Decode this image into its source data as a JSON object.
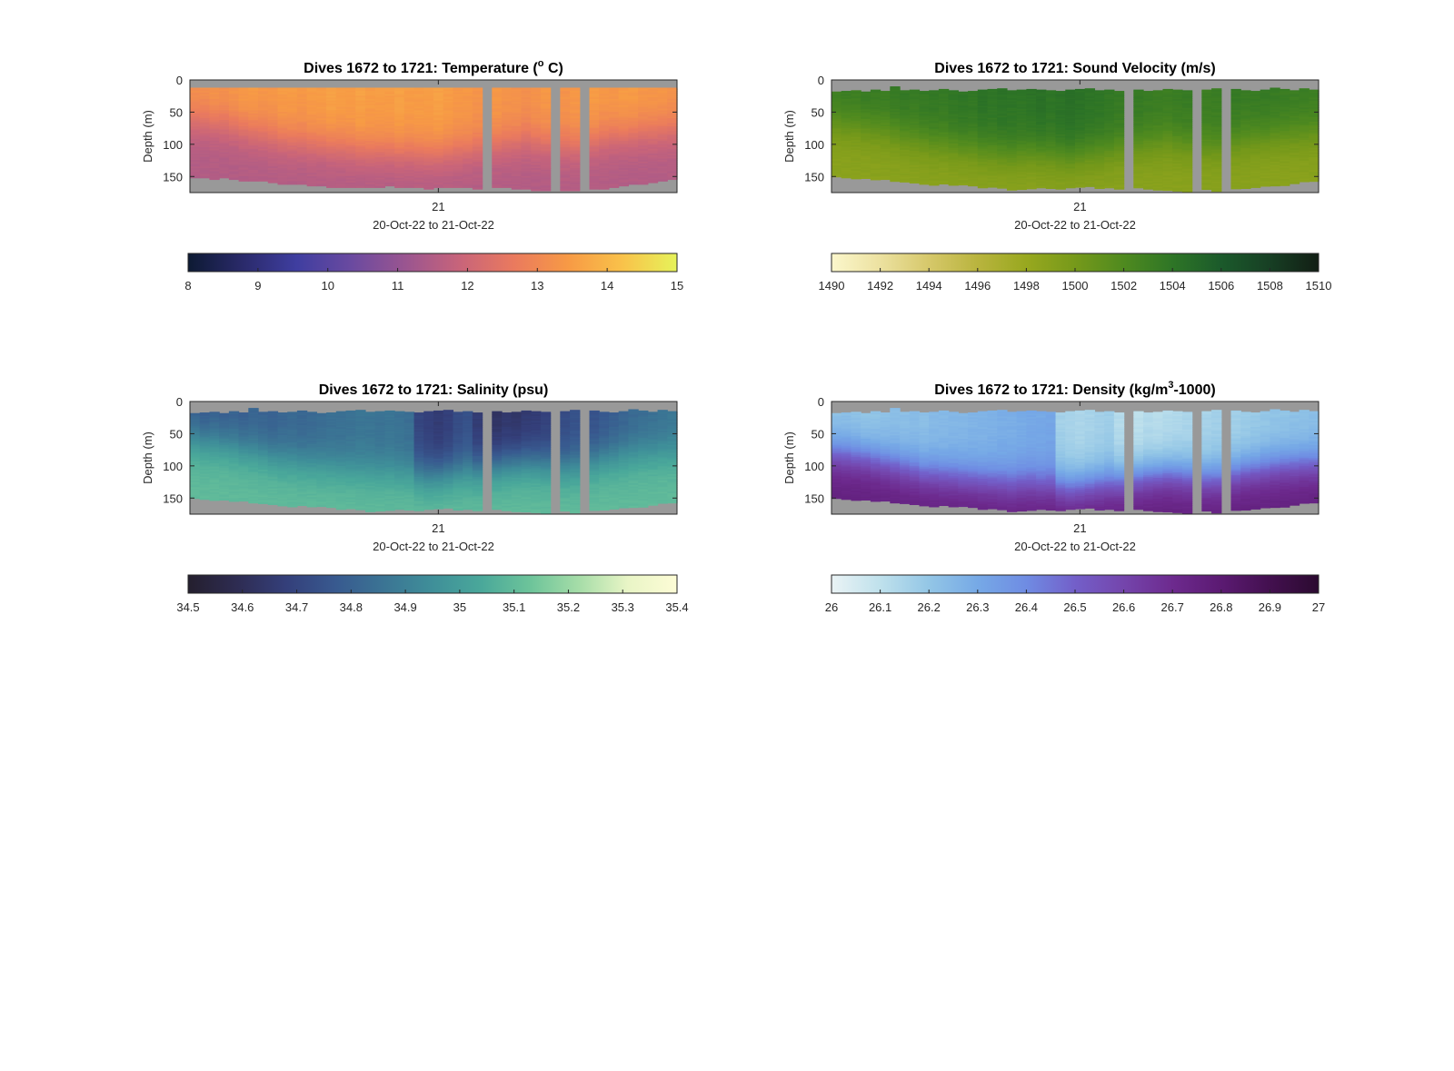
{
  "chart_data": [
    {
      "type": "heatmap",
      "title_main": "Dives 1672 to 1721: Temperature (",
      "title_sup": "o",
      "title_tail": " C)",
      "ylabel": "Depth (m)",
      "xlabel": "20-Oct-22 to 21-Oct-22",
      "x_ticks": [
        "21"
      ],
      "y_ticks": [
        0,
        50,
        100,
        150
      ],
      "ylim": [
        0,
        175
      ],
      "colorbar": {
        "min": 8,
        "max": 15,
        "ticks": [
          "8",
          "9",
          "10",
          "11",
          "12",
          "13",
          "14",
          "15"
        ],
        "colors": [
          "#0d1a33",
          "#2a2a6a",
          "#3f3ea0",
          "#6a4aa0",
          "#9a5590",
          "#c8647a",
          "#ea7a5e",
          "#f79a45",
          "#f9c24a",
          "#e6f35a"
        ]
      },
      "top_depth": [
        12,
        12,
        12,
        12,
        12,
        12,
        12,
        12,
        12,
        12,
        12,
        12,
        12,
        12,
        12,
        12,
        12,
        12,
        12,
        12,
        12,
        12,
        12,
        12,
        12,
        12,
        12,
        12,
        12,
        12,
        12,
        12,
        12,
        12,
        12,
        12,
        12,
        12,
        12,
        12,
        12,
        12,
        12,
        12,
        12,
        12,
        12,
        12,
        12,
        12
      ],
      "bottom_depth": [
        152,
        152,
        153,
        152,
        154,
        155,
        156,
        157,
        158,
        160,
        161,
        162,
        163,
        164,
        165,
        166,
        166,
        167,
        166,
        165,
        164,
        165,
        166,
        167,
        168,
        167,
        166,
        166,
        165,
        168,
        167,
        166,
        167,
        168,
        169,
        170,
        170,
        169,
        170,
        171,
        170,
        169,
        168,
        166,
        164,
        162,
        160,
        158,
        156,
        154
      ],
      "gaps": [
        30,
        37,
        40
      ],
      "profile": {
        "surface": [
          13.3,
          13.3,
          13.4,
          13.3,
          13.4,
          13.5,
          13.5,
          13.4,
          13.4,
          13.5,
          13.5,
          13.4,
          13.5,
          13.5,
          13.6,
          13.5,
          13.5,
          13.6,
          13.5,
          13.5,
          13.5,
          13.6,
          13.5,
          13.5,
          13.5,
          13.6,
          13.5,
          13.4,
          13.4,
          13.3,
          13.3,
          13.4,
          13.3,
          13.3,
          13.2,
          13.3,
          13.4,
          13.3,
          13.3,
          13.4,
          13.5,
          13.5,
          13.4,
          13.4,
          13.5,
          13.5,
          13.4,
          13.4,
          13.4,
          13.3
        ],
        "mid": [
          60,
          62,
          64,
          66,
          70,
          74,
          78,
          82,
          86,
          90,
          92,
          94,
          96,
          98,
          100,
          102,
          104,
          106,
          108,
          108,
          108,
          110,
          110,
          112,
          114,
          112,
          110,
          108,
          106,
          104,
          100,
          98,
          96,
          94,
          92,
          94,
          96,
          98,
          100,
          100,
          96,
          92,
          88,
          86,
          84,
          82,
          80,
          80,
          78,
          78
        ],
        "bottom_val": 11.5
      }
    },
    {
      "type": "heatmap",
      "title_main": "Dives 1672 to 1721: Sound Velocity (m/s)",
      "title_sup": "",
      "title_tail": "",
      "ylabel": "Depth (m)",
      "xlabel": "20-Oct-22 to 21-Oct-22",
      "x_ticks": [
        "21"
      ],
      "y_ticks": [
        0,
        50,
        100,
        150
      ],
      "ylim": [
        0,
        175
      ],
      "colorbar": {
        "min": 1490,
        "max": 1510,
        "ticks": [
          "1490",
          "1492",
          "1494",
          "1496",
          "1498",
          "1500",
          "1502",
          "1504",
          "1506",
          "1508",
          "1510"
        ],
        "colors": [
          "#fbf7cc",
          "#ece1a0",
          "#d6c86a",
          "#b9b43e",
          "#98a81f",
          "#76991a",
          "#4f8a1f",
          "#2e7526",
          "#1b5a2b",
          "#173f24",
          "#121e14"
        ]
      },
      "top_depth": [
        18,
        17,
        16,
        18,
        15,
        17,
        10,
        16,
        15,
        17,
        16,
        14,
        16,
        18,
        17,
        15,
        14,
        13,
        16,
        15,
        14,
        15,
        16,
        17,
        15,
        14,
        13,
        16,
        15,
        17,
        16,
        15,
        17,
        16,
        14,
        15,
        16,
        14,
        15,
        13,
        14,
        14,
        16,
        17,
        15,
        12,
        14,
        16,
        13,
        15
      ],
      "bottom_depth": [
        150,
        152,
        152,
        153,
        155,
        154,
        156,
        157,
        158,
        160,
        162,
        161,
        162,
        163,
        164,
        166,
        165,
        168,
        170,
        168,
        167,
        166,
        168,
        169,
        167,
        166,
        165,
        167,
        166,
        168,
        167,
        166,
        168,
        169,
        170,
        171,
        172,
        170,
        169,
        171,
        170,
        168,
        167,
        166,
        165,
        163,
        162,
        160,
        158,
        156
      ],
      "gaps": [
        30,
        37,
        40
      ],
      "profile": {
        "surface": [
          1503.3,
          1503.5,
          1503.3,
          1503.6,
          1503.5,
          1503.4,
          1503.6,
          1503.8,
          1503.5,
          1503.7,
          1503.8,
          1503.6,
          1503.9,
          1504.0,
          1503.8,
          1504.2,
          1504.0,
          1504.2,
          1504.1,
          1504.0,
          1504.2,
          1504.4,
          1504.1,
          1504.3,
          1504.5,
          1504.3,
          1504.1,
          1504.0,
          1503.8,
          1503.6,
          1503.5,
          1503.6,
          1503.4,
          1503.3,
          1503.2,
          1503.4,
          1503.5,
          1503.3,
          1503.2,
          1503.3,
          1503.5,
          1503.6,
          1503.4,
          1503.5,
          1503.6,
          1503.5,
          1503.4,
          1503.3,
          1503.3,
          1503.2
        ],
        "mid": [
          65,
          68,
          70,
          72,
          75,
          78,
          82,
          86,
          90,
          93,
          96,
          98,
          100,
          103,
          105,
          108,
          110,
          112,
          114,
          112,
          110,
          112,
          114,
          116,
          118,
          115,
          112,
          110,
          108,
          105,
          102,
          100,
          98,
          96,
          95,
          97,
          100,
          102,
          104,
          103,
          99,
          95,
          92,
          90,
          88,
          86,
          85,
          84,
          83,
          82
        ],
        "bottom_val": 1498.8
      }
    },
    {
      "type": "heatmap",
      "title_main": "Dives 1672 to 1721: Salinity (psu)",
      "title_sup": "",
      "title_tail": "",
      "ylabel": "Depth (m)",
      "xlabel": "20-Oct-22 to 21-Oct-22",
      "x_ticks": [
        "21"
      ],
      "y_ticks": [
        0,
        50,
        100,
        150
      ],
      "ylim": [
        0,
        175
      ],
      "colorbar": {
        "min": 34.5,
        "max": 35.4,
        "ticks": [
          "34.5",
          "34.6",
          "34.7",
          "34.8",
          "34.9",
          "35",
          "35.1",
          "35.2",
          "35.3",
          "35.4"
        ],
        "colors": [
          "#241f2e",
          "#2e2c52",
          "#343f7a",
          "#38598f",
          "#3b7494",
          "#3f8f99",
          "#4aa89a",
          "#6dc49a",
          "#a6dda8",
          "#e9f5c6",
          "#fdfcd6"
        ]
      },
      "top_depth": [
        18,
        17,
        16,
        18,
        15,
        17,
        10,
        16,
        15,
        17,
        16,
        14,
        16,
        18,
        17,
        15,
        14,
        13,
        16,
        15,
        14,
        15,
        16,
        17,
        15,
        14,
        13,
        16,
        15,
        17,
        16,
        15,
        17,
        16,
        14,
        15,
        16,
        14,
        15,
        13,
        14,
        14,
        16,
        17,
        15,
        12,
        14,
        16,
        13,
        15
      ],
      "bottom_depth": [
        150,
        152,
        152,
        153,
        155,
        154,
        156,
        157,
        158,
        160,
        162,
        161,
        162,
        163,
        164,
        166,
        165,
        168,
        170,
        168,
        167,
        166,
        168,
        169,
        167,
        166,
        165,
        167,
        166,
        168,
        167,
        166,
        168,
        169,
        170,
        171,
        172,
        170,
        169,
        171,
        170,
        168,
        167,
        166,
        165,
        163,
        162,
        160,
        158,
        156
      ],
      "gaps": [
        30,
        37,
        40
      ],
      "profile": {
        "surface": [
          34.78,
          34.76,
          34.78,
          34.77,
          34.79,
          34.78,
          34.8,
          34.8,
          34.79,
          34.81,
          34.82,
          34.81,
          34.82,
          34.83,
          34.84,
          34.84,
          34.85,
          34.86,
          34.86,
          34.85,
          34.86,
          34.85,
          34.84,
          34.7,
          34.68,
          34.66,
          34.68,
          34.72,
          34.74,
          34.66,
          34.64,
          34.62,
          34.64,
          34.63,
          34.65,
          34.66,
          34.68,
          34.7,
          34.72,
          34.74,
          34.72,
          34.74,
          34.76,
          34.78,
          34.8,
          34.82,
          34.83,
          34.84,
          34.85,
          34.86
        ],
        "mid": [
          58,
          60,
          62,
          64,
          68,
          72,
          76,
          80,
          84,
          88,
          90,
          92,
          94,
          96,
          98,
          100,
          102,
          104,
          106,
          106,
          106,
          108,
          108,
          110,
          112,
          110,
          108,
          106,
          104,
          102,
          98,
          96,
          94,
          92,
          90,
          92,
          94,
          96,
          98,
          98,
          94,
          90,
          86,
          84,
          82,
          80,
          78,
          78,
          76,
          76
        ],
        "bottom_val": 35.1
      }
    },
    {
      "type": "heatmap",
      "title_main": "Dives 1672 to 1721: Density (kg/m",
      "title_sup": "3",
      "title_tail": "-1000)",
      "ylabel": "Depth (m)",
      "xlabel": "20-Oct-22 to 21-Oct-22",
      "x_ticks": [
        "21"
      ],
      "y_ticks": [
        0,
        50,
        100,
        150
      ],
      "ylim": [
        0,
        175
      ],
      "colorbar": {
        "min": 26,
        "max": 27,
        "ticks": [
          "26",
          "26.1",
          "26.2",
          "26.3",
          "26.4",
          "26.5",
          "26.6",
          "26.7",
          "26.8",
          "26.9",
          "27"
        ],
        "colors": [
          "#eaf3f5",
          "#bfe1ec",
          "#93c6e6",
          "#76a9e6",
          "#6f8ce3",
          "#735fc9",
          "#7445ac",
          "#6d2a8e",
          "#5b1a72",
          "#43104f",
          "#2b0a30"
        ]
      },
      "top_depth": [
        18,
        17,
        16,
        18,
        15,
        17,
        10,
        16,
        15,
        17,
        16,
        14,
        16,
        18,
        17,
        15,
        14,
        13,
        16,
        15,
        14,
        15,
        16,
        17,
        15,
        14,
        13,
        16,
        15,
        17,
        16,
        15,
        17,
        16,
        14,
        15,
        16,
        14,
        15,
        13,
        14,
        14,
        16,
        17,
        15,
        12,
        14,
        16,
        13,
        15
      ],
      "bottom_depth": [
        150,
        152,
        152,
        153,
        155,
        154,
        156,
        157,
        158,
        160,
        162,
        161,
        162,
        163,
        164,
        166,
        165,
        168,
        170,
        168,
        167,
        166,
        168,
        169,
        167,
        166,
        165,
        167,
        166,
        168,
        167,
        166,
        168,
        169,
        170,
        171,
        172,
        170,
        169,
        171,
        170,
        168,
        167,
        166,
        165,
        163,
        162,
        160,
        158,
        156
      ],
      "gaps": [
        30,
        37,
        40
      ],
      "profile": {
        "surface": [
          26.2,
          26.21,
          26.2,
          26.19,
          26.2,
          26.21,
          26.22,
          26.22,
          26.23,
          26.22,
          26.24,
          26.24,
          26.25,
          26.25,
          26.26,
          26.26,
          26.27,
          26.28,
          26.28,
          26.29,
          26.3,
          26.3,
          26.31,
          26.16,
          26.15,
          26.14,
          26.15,
          26.16,
          26.17,
          26.12,
          26.12,
          26.1,
          26.12,
          26.11,
          26.12,
          26.13,
          26.14,
          26.14,
          26.15,
          26.16,
          26.15,
          26.16,
          26.17,
          26.18,
          26.19,
          26.2,
          26.2,
          26.21,
          26.21,
          26.22
        ],
        "mid": [
          80,
          82,
          84,
          86,
          90,
          94,
          98,
          102,
          106,
          110,
          112,
          114,
          116,
          118,
          120,
          122,
          124,
          126,
          128,
          126,
          126,
          128,
          128,
          130,
          132,
          130,
          128,
          126,
          124,
          122,
          118,
          116,
          114,
          112,
          110,
          112,
          114,
          116,
          118,
          118,
          114,
          110,
          106,
          104,
          102,
          100,
          98,
          98,
          96,
          96
        ],
        "bottom_val": 26.76
      }
    }
  ]
}
